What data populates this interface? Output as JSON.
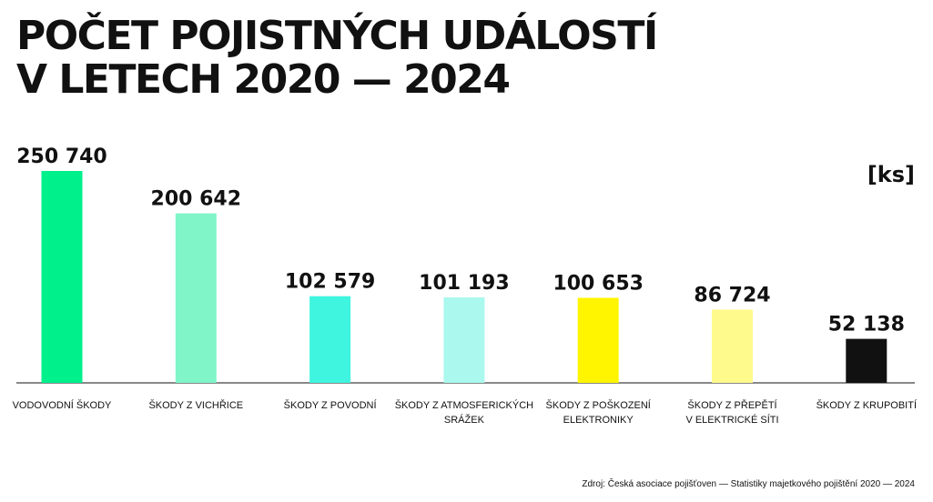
{
  "title_line1": "POČET POJISTNÝCH UDÁLOSTÍ",
  "title_line2": "V LETECH 2020 — 2024",
  "unit": "[ks]",
  "source": "Zdroj: Česká asociace pojišťoven — Statistiky majetkového pojištění 2020 — 2024",
  "chart_data": {
    "type": "bar",
    "title": "POČET POJISTNÝCH UDÁLOSTÍ V LETECH 2020 — 2024",
    "ylabel": "[ks]",
    "grid": false,
    "legend": "none",
    "ylim": [
      0,
      250740
    ],
    "categories": [
      [
        "VODOVODNÍ ŠKODY"
      ],
      [
        "ŠKODY Z VICHŘICE"
      ],
      [
        "ŠKODY Z POVODNÍ"
      ],
      [
        "ŠKODY Z ATMOSFERICKÝCH",
        "SRÁŽEK"
      ],
      [
        "ŠKODY Z POŠKOZENÍ",
        "ELEKTRONIKY"
      ],
      [
        "ŠKODY Z PŘEPĚTÍ",
        "V ELEKTRICKÉ SÍTI"
      ],
      [
        "ŠKODY Z KRUPOBITÍ"
      ]
    ],
    "values": [
      250740,
      200642,
      102579,
      101193,
      100653,
      86724,
      52138
    ],
    "value_labels": [
      "250 740",
      "200 642",
      "102 579",
      "101 193",
      "100 653",
      "86 724",
      "52 138"
    ],
    "colors": [
      "#00F08C",
      "#80F5C8",
      "#40F5E0",
      "#AAF8EE",
      "#FFF500",
      "#FFFA8C",
      "#111111"
    ]
  }
}
